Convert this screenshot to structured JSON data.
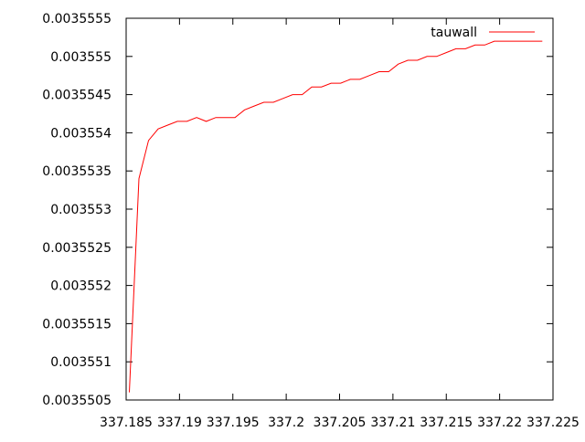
{
  "chart_data": {
    "type": "line",
    "title": "",
    "xlabel": "",
    "ylabel": "",
    "xlim": [
      337.185,
      337.225
    ],
    "ylim": [
      0.0035505,
      0.0035555
    ],
    "x_ticks": [
      337.185,
      337.19,
      337.195,
      337.2,
      337.205,
      337.21,
      337.215,
      337.22,
      337.225
    ],
    "x_tick_labels": [
      "337.185",
      "337.19",
      "337.195",
      "337.2",
      "337.205",
      "337.21",
      "337.215",
      "337.22",
      "337.225"
    ],
    "y_ticks": [
      0.0035505,
      0.003551,
      0.0035515,
      0.003552,
      0.0035525,
      0.003553,
      0.0035535,
      0.003554,
      0.0035545,
      0.003555,
      0.0035555
    ],
    "y_tick_labels": [
      "0.0035505",
      "0.003551",
      "0.0035515",
      "0.003552",
      "0.0035525",
      "0.003553",
      "0.0035535",
      "0.003554",
      "0.0035545",
      "0.003555",
      "0.0035555"
    ],
    "grid": false,
    "legend_position": "top-right",
    "series": [
      {
        "name": "tauwall",
        "color": "#ff0000",
        "x": [
          337.1853,
          337.1862,
          337.1871,
          337.188,
          337.1889,
          337.1898,
          337.1907,
          337.1916,
          337.1925,
          337.1934,
          337.1943,
          337.1952,
          337.1961,
          337.197,
          337.1979,
          337.1988,
          337.1997,
          337.2006,
          337.2015,
          337.2024,
          337.2033,
          337.2042,
          337.2051,
          337.206,
          337.2069,
          337.2078,
          337.2087,
          337.2096,
          337.2105,
          337.2114,
          337.2123,
          337.2132,
          337.2141,
          337.215,
          337.2159,
          337.2168,
          337.2177,
          337.2186,
          337.2195,
          337.2204,
          337.2213,
          337.2222,
          337.2231,
          337.224
        ],
        "y": [
          0.0035506,
          0.0035534,
          0.0035539,
          0.00355405,
          0.0035541,
          0.00355415,
          0.00355415,
          0.0035542,
          0.00355415,
          0.0035542,
          0.0035542,
          0.0035542,
          0.0035543,
          0.00355435,
          0.0035544,
          0.0035544,
          0.00355445,
          0.0035545,
          0.0035545,
          0.0035546,
          0.0035546,
          0.00355465,
          0.00355465,
          0.0035547,
          0.0035547,
          0.00355475,
          0.0035548,
          0.0035548,
          0.0035549,
          0.00355495,
          0.00355495,
          0.003555,
          0.003555,
          0.00355505,
          0.0035551,
          0.0035551,
          0.00355515,
          0.00355515,
          0.0035552,
          0.0035552,
          0.0035552,
          0.0035552,
          0.0035552,
          0.0035552
        ]
      }
    ]
  }
}
